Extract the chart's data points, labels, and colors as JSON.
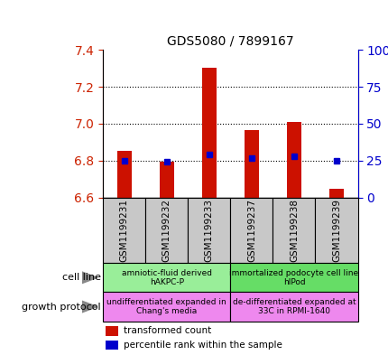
{
  "title": "GDS5080 / 7899167",
  "samples": [
    "GSM1199231",
    "GSM1199232",
    "GSM1199233",
    "GSM1199237",
    "GSM1199238",
    "GSM1199239"
  ],
  "red_values": [
    6.855,
    6.795,
    7.305,
    6.965,
    7.01,
    6.645
  ],
  "blue_values": [
    6.8,
    6.795,
    6.835,
    6.815,
    6.825,
    6.8
  ],
  "red_base": 6.6,
  "ylim": [
    6.6,
    7.4
  ],
  "right_ylim": [
    0,
    100
  ],
  "right_yticks": [
    0,
    25,
    50,
    75,
    100
  ],
  "left_yticks": [
    6.6,
    6.8,
    7.0,
    7.2,
    7.4
  ],
  "hlines": [
    6.8,
    7.0,
    7.2
  ],
  "cell_line_groups": [
    {
      "label": "amniotic-fluid derived\nhAKPC-P",
      "samples": [
        0,
        1,
        2
      ],
      "color": "#99EE99"
    },
    {
      "label": "immortalized podocyte cell line\nhIPod",
      "samples": [
        3,
        4,
        5
      ],
      "color": "#66DD66"
    }
  ],
  "growth_protocol_groups": [
    {
      "label": "undifferentiated expanded in\nChang's media",
      "samples": [
        0,
        1,
        2
      ],
      "color": "#EE88EE"
    },
    {
      "label": "de-differentiated expanded at\n33C in RPMI-1640",
      "samples": [
        3,
        4,
        5
      ],
      "color": "#EE88EE"
    }
  ],
  "left_label_color": "#CC2200",
  "right_label_color": "#0000CC",
  "bar_color": "#CC1100",
  "dot_color": "#0000CC",
  "bg_color": "#C8C8C8",
  "bar_width": 0.35,
  "figsize": [
    4.31,
    3.93
  ],
  "dpi": 100
}
